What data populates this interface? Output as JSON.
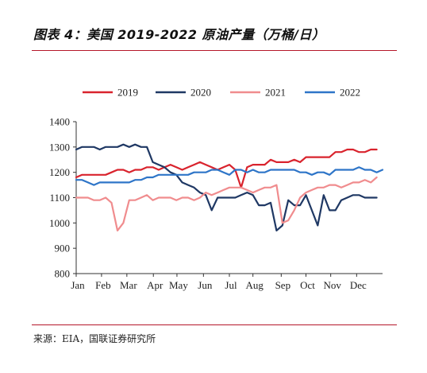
{
  "header": {
    "title": "图表 4：美国 2019-2022 原油产量（万桶/日）"
  },
  "footer": {
    "source": "来源：EIA，国联证券研究所"
  },
  "chart_data": {
    "type": "line",
    "title": "图表 4：美国 2019-2022 原油产量（万桶/日）",
    "xlabel": "",
    "ylabel": "",
    "ylim": [
      800,
      1400
    ],
    "yticks": [
      800,
      900,
      1000,
      1100,
      1200,
      1300,
      1400
    ],
    "xlim": [
      0,
      52
    ],
    "months": [
      {
        "label": "Jan",
        "x": 0
      },
      {
        "label": "Feb",
        "x": 4.3
      },
      {
        "label": "Mar",
        "x": 8.6
      },
      {
        "label": "Apr",
        "x": 13.1
      },
      {
        "label": "May",
        "x": 17.1
      },
      {
        "label": "Jun",
        "x": 21.6
      },
      {
        "label": "Jul",
        "x": 26.0
      },
      {
        "label": "Aug",
        "x": 30.0
      },
      {
        "label": "Sep",
        "x": 34.8
      },
      {
        "label": "Oct",
        "x": 39.0
      },
      {
        "label": "Nov",
        "x": 43.2
      },
      {
        "label": "Dec",
        "x": 47.6
      }
    ],
    "legend": {
      "position": "top"
    },
    "grid": false,
    "series": [
      {
        "name": "2019",
        "color": "#d9232d",
        "values": [
          [
            0,
            1180
          ],
          [
            1,
            1190
          ],
          [
            2,
            1190
          ],
          [
            3,
            1190
          ],
          [
            4,
            1190
          ],
          [
            5,
            1190
          ],
          [
            6,
            1200
          ],
          [
            7,
            1210
          ],
          [
            8,
            1210
          ],
          [
            9,
            1200
          ],
          [
            10,
            1210
          ],
          [
            11,
            1210
          ],
          [
            12,
            1220
          ],
          [
            13,
            1220
          ],
          [
            14,
            1210
          ],
          [
            15,
            1220
          ],
          [
            16,
            1230
          ],
          [
            17,
            1220
          ],
          [
            18,
            1210
          ],
          [
            19,
            1220
          ],
          [
            20,
            1230
          ],
          [
            21,
            1240
          ],
          [
            22,
            1230
          ],
          [
            23,
            1220
          ],
          [
            24,
            1210
          ],
          [
            25,
            1220
          ],
          [
            26,
            1230
          ],
          [
            27,
            1210
          ],
          [
            28,
            1140
          ],
          [
            29,
            1220
          ],
          [
            30,
            1230
          ],
          [
            31,
            1230
          ],
          [
            32,
            1230
          ],
          [
            33,
            1250
          ],
          [
            34,
            1240
          ],
          [
            35,
            1240
          ],
          [
            36,
            1240
          ],
          [
            37,
            1250
          ],
          [
            38,
            1240
          ],
          [
            39,
            1260
          ],
          [
            40,
            1260
          ],
          [
            41,
            1260
          ],
          [
            42,
            1260
          ],
          [
            43,
            1260
          ],
          [
            44,
            1280
          ],
          [
            45,
            1280
          ],
          [
            46,
            1290
          ],
          [
            47,
            1290
          ],
          [
            48,
            1280
          ],
          [
            49,
            1280
          ],
          [
            50,
            1290
          ],
          [
            51,
            1290
          ]
        ]
      },
      {
        "name": "2020",
        "color": "#1f3864",
        "values": [
          [
            0,
            1290
          ],
          [
            1,
            1300
          ],
          [
            2,
            1300
          ],
          [
            3,
            1300
          ],
          [
            4,
            1290
          ],
          [
            5,
            1300
          ],
          [
            6,
            1300
          ],
          [
            7,
            1300
          ],
          [
            8,
            1310
          ],
          [
            9,
            1300
          ],
          [
            10,
            1310
          ],
          [
            11,
            1300
          ],
          [
            12,
            1300
          ],
          [
            13,
            1240
          ],
          [
            14,
            1230
          ],
          [
            15,
            1220
          ],
          [
            16,
            1200
          ],
          [
            17,
            1190
          ],
          [
            18,
            1160
          ],
          [
            19,
            1150
          ],
          [
            20,
            1140
          ],
          [
            21,
            1120
          ],
          [
            22,
            1110
          ],
          [
            23,
            1050
          ],
          [
            24,
            1100
          ],
          [
            25,
            1100
          ],
          [
            26,
            1100
          ],
          [
            27,
            1100
          ],
          [
            28,
            1110
          ],
          [
            29,
            1120
          ],
          [
            30,
            1110
          ],
          [
            31,
            1070
          ],
          [
            32,
            1070
          ],
          [
            33,
            1080
          ],
          [
            34,
            970
          ],
          [
            35,
            990
          ],
          [
            36,
            1090
          ],
          [
            37,
            1070
          ],
          [
            38,
            1070
          ],
          [
            39,
            1110
          ],
          [
            40,
            1050
          ],
          [
            41,
            990
          ],
          [
            42,
            1110
          ],
          [
            43,
            1050
          ],
          [
            44,
            1050
          ],
          [
            45,
            1090
          ],
          [
            46,
            1100
          ],
          [
            47,
            1110
          ],
          [
            48,
            1110
          ],
          [
            49,
            1100
          ],
          [
            50,
            1100
          ],
          [
            51,
            1100
          ]
        ]
      },
      {
        "name": "2021",
        "color": "#f08c8e",
        "values": [
          [
            0,
            1100
          ],
          [
            1,
            1100
          ],
          [
            2,
            1100
          ],
          [
            3,
            1090
          ],
          [
            4,
            1090
          ],
          [
            5,
            1100
          ],
          [
            6,
            1080
          ],
          [
            7,
            970
          ],
          [
            8,
            1000
          ],
          [
            9,
            1090
          ],
          [
            10,
            1090
          ],
          [
            11,
            1100
          ],
          [
            12,
            1110
          ],
          [
            13,
            1090
          ],
          [
            14,
            1100
          ],
          [
            15,
            1100
          ],
          [
            16,
            1100
          ],
          [
            17,
            1090
          ],
          [
            18,
            1100
          ],
          [
            19,
            1100
          ],
          [
            20,
            1090
          ],
          [
            21,
            1100
          ],
          [
            22,
            1120
          ],
          [
            23,
            1110
          ],
          [
            24,
            1120
          ],
          [
            25,
            1130
          ],
          [
            26,
            1140
          ],
          [
            27,
            1140
          ],
          [
            28,
            1140
          ],
          [
            29,
            1130
          ],
          [
            30,
            1120
          ],
          [
            31,
            1130
          ],
          [
            32,
            1140
          ],
          [
            33,
            1140
          ],
          [
            34,
            1150
          ],
          [
            35,
            1000
          ],
          [
            36,
            1010
          ],
          [
            37,
            1050
          ],
          [
            38,
            1100
          ],
          [
            39,
            1120
          ],
          [
            40,
            1130
          ],
          [
            41,
            1140
          ],
          [
            42,
            1140
          ],
          [
            43,
            1150
          ],
          [
            44,
            1150
          ],
          [
            45,
            1140
          ],
          [
            46,
            1150
          ],
          [
            47,
            1160
          ],
          [
            48,
            1160
          ],
          [
            49,
            1170
          ],
          [
            50,
            1160
          ],
          [
            51,
            1180
          ]
        ]
      },
      {
        "name": "2022",
        "color": "#2e75c8",
        "values": [
          [
            0,
            1170
          ],
          [
            1,
            1170
          ],
          [
            2,
            1160
          ],
          [
            3,
            1150
          ],
          [
            4,
            1160
          ],
          [
            5,
            1160
          ],
          [
            6,
            1160
          ],
          [
            7,
            1160
          ],
          [
            8,
            1160
          ],
          [
            9,
            1160
          ],
          [
            10,
            1170
          ],
          [
            11,
            1170
          ],
          [
            12,
            1180
          ],
          [
            13,
            1180
          ],
          [
            14,
            1190
          ],
          [
            15,
            1190
          ],
          [
            16,
            1190
          ],
          [
            17,
            1190
          ],
          [
            18,
            1190
          ],
          [
            19,
            1190
          ],
          [
            20,
            1200
          ],
          [
            21,
            1200
          ],
          [
            22,
            1200
          ],
          [
            23,
            1210
          ],
          [
            24,
            1210
          ],
          [
            25,
            1200
          ],
          [
            26,
            1190
          ],
          [
            27,
            1210
          ],
          [
            28,
            1210
          ],
          [
            29,
            1200
          ],
          [
            30,
            1210
          ],
          [
            31,
            1200
          ],
          [
            32,
            1200
          ],
          [
            33,
            1210
          ],
          [
            34,
            1210
          ],
          [
            35,
            1210
          ],
          [
            36,
            1210
          ],
          [
            37,
            1210
          ],
          [
            38,
            1200
          ],
          [
            39,
            1200
          ],
          [
            40,
            1190
          ],
          [
            41,
            1200
          ],
          [
            42,
            1200
          ],
          [
            43,
            1190
          ],
          [
            44,
            1210
          ],
          [
            45,
            1210
          ],
          [
            46,
            1210
          ],
          [
            47,
            1210
          ],
          [
            48,
            1220
          ],
          [
            49,
            1210
          ],
          [
            50,
            1210
          ],
          [
            51,
            1200
          ],
          [
            52,
            1210
          ]
        ]
      }
    ]
  }
}
